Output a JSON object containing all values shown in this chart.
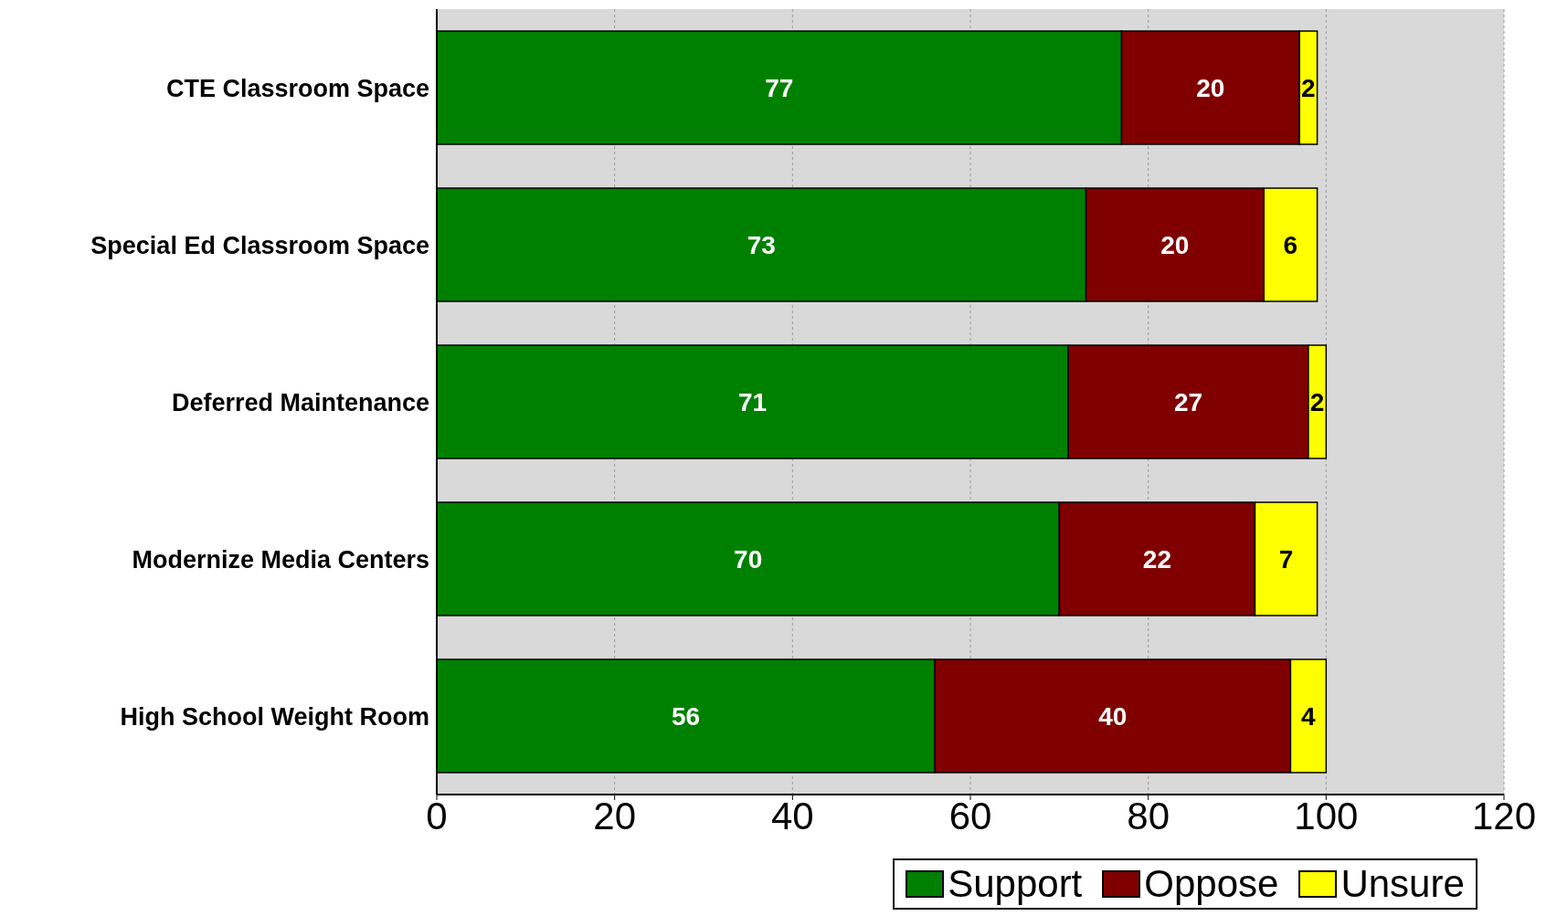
{
  "chart_data": {
    "type": "bar",
    "orientation": "horizontal",
    "stacked": true,
    "categories": [
      "CTE Classroom Space",
      "Special Ed Classroom Space",
      "Deferred Maintenance",
      "Modernize Media Centers",
      "High School Weight Room"
    ],
    "series": [
      {
        "name": "Support",
        "color": "#008000",
        "values": [
          77,
          73,
          71,
          70,
          56
        ]
      },
      {
        "name": "Oppose",
        "color": "#800000",
        "values": [
          20,
          20,
          27,
          22,
          40
        ]
      },
      {
        "name": "Unsure",
        "color": "#ffff00",
        "values": [
          2,
          6,
          2,
          7,
          4
        ]
      }
    ],
    "xlim": [
      0,
      120
    ],
    "xticks": [
      0,
      20,
      40,
      60,
      80,
      100,
      120
    ],
    "grid": "x",
    "legend": "bottom",
    "data_labels": true
  }
}
